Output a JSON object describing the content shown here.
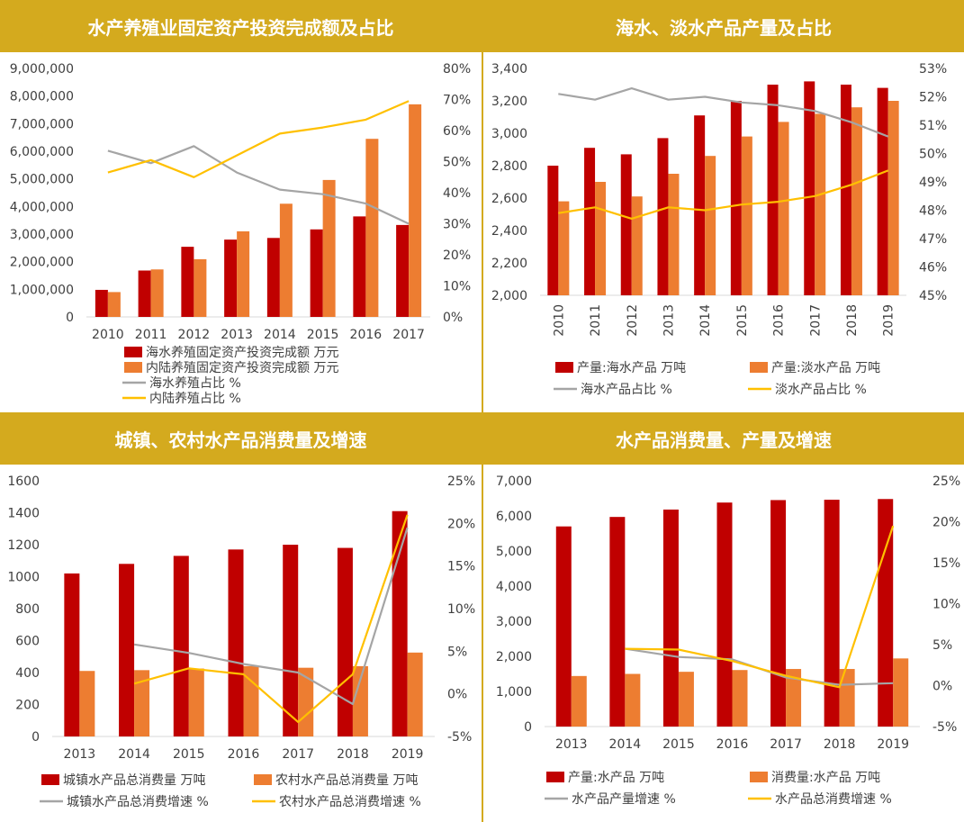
{
  "colors": {
    "header_bg": "#d4aa1e",
    "dark_red": "#c00000",
    "orange": "#ed7d31",
    "gray": "#a5a5a5",
    "yellow": "#ffc000"
  },
  "chart_data": [
    {
      "type": "bar",
      "title": "水产养殖业固定资产投资完成额及占比",
      "categories": [
        "2010",
        "2011",
        "2012",
        "2013",
        "2014",
        "2015",
        "2016",
        "2017"
      ],
      "ylim": [
        0,
        9000000
      ],
      "y_ticks": [
        "9,000,000",
        "8,000,000",
        "7,000,000",
        "6,000,000",
        "5,000,000",
        "4,000,000",
        "3,000,000",
        "2,000,000",
        "1,000,000",
        "0"
      ],
      "y2lim": [
        0,
        80
      ],
      "y2_ticks": [
        "80%",
        "70%",
        "60%",
        "50%",
        "40%",
        "30%",
        "20%",
        "10%",
        "0%"
      ],
      "series": [
        {
          "name": "海水养殖固定资产投资完成额 万元",
          "kind": "bar",
          "values": [
            980000,
            1680000,
            2540000,
            2800000,
            2860000,
            3170000,
            3640000,
            3330000
          ]
        },
        {
          "name": "内陆养殖固定资产投资完成额 万元",
          "kind": "bar",
          "values": [
            900000,
            1720000,
            2090000,
            3100000,
            4100000,
            4960000,
            6450000,
            7700000
          ]
        },
        {
          "name": "海水养殖占比 %",
          "kind": "line",
          "axis": "right",
          "values": [
            53.5,
            49.5,
            55,
            46.5,
            41,
            39.5,
            36.5,
            30
          ]
        },
        {
          "name": "内陆养殖占比 %",
          "kind": "line",
          "axis": "right",
          "values": [
            46.5,
            50.5,
            45,
            52,
            59,
            61,
            63.5,
            69.5
          ]
        }
      ]
    },
    {
      "type": "bar",
      "title": "海水、淡水产品产量及占比",
      "categories": [
        "2010",
        "2011",
        "2012",
        "2013",
        "2014",
        "2015",
        "2016",
        "2017",
        "2018",
        "2019"
      ],
      "ylim": [
        2000,
        3400
      ],
      "y_ticks": [
        "3,400",
        "3,200",
        "3,000",
        "2,800",
        "2,600",
        "2,400",
        "2,200",
        "2,000"
      ],
      "y2lim": [
        45,
        53
      ],
      "y2_ticks": [
        "53%",
        "52%",
        "51%",
        "50%",
        "49%",
        "48%",
        "47%",
        "46%",
        "45%"
      ],
      "series": [
        {
          "name": "产量:海水产品 万吨",
          "kind": "bar",
          "values": [
            2800,
            2910,
            2870,
            2970,
            3110,
            3200,
            3300,
            3320,
            3300,
            3280
          ]
        },
        {
          "name": "产量:淡水产品 万吨",
          "kind": "bar",
          "values": [
            2580,
            2700,
            2610,
            2750,
            2860,
            2980,
            3070,
            3120,
            3160,
            3200
          ]
        },
        {
          "name": "海水产品占比 %",
          "kind": "line",
          "axis": "right",
          "values": [
            52.1,
            51.9,
            52.3,
            51.9,
            52.0,
            51.8,
            51.7,
            51.5,
            51.1,
            50.6
          ]
        },
        {
          "name": "淡水产品占比 %",
          "kind": "line",
          "axis": "right",
          "values": [
            47.9,
            48.1,
            47.7,
            48.1,
            48.0,
            48.2,
            48.3,
            48.5,
            48.9,
            49.4
          ]
        }
      ]
    },
    {
      "type": "bar",
      "title": "城镇、农村水产品消费量及增速",
      "categories": [
        "2013",
        "2014",
        "2015",
        "2016",
        "2017",
        "2018",
        "2019"
      ],
      "ylim": [
        0,
        1600
      ],
      "y_ticks": [
        "1600",
        "1400",
        "1200",
        "1000",
        "800",
        "600",
        "400",
        "200",
        "0"
      ],
      "y2lim": [
        -5,
        25
      ],
      "y2_ticks": [
        "25%",
        "20%",
        "15%",
        "10%",
        "5%",
        "0%",
        "-5%"
      ],
      "series": [
        {
          "name": "城镇水产品总消费量 万吨",
          "kind": "bar",
          "values": [
            1020,
            1080,
            1130,
            1170,
            1200,
            1180,
            1410
          ]
        },
        {
          "name": "农村水产品总消费量 万吨",
          "kind": "bar",
          "values": [
            410,
            415,
            425,
            440,
            430,
            440,
            525
          ]
        },
        {
          "name": "城镇水产品总消费增速 %",
          "kind": "line",
          "axis": "right",
          "values": [
            null,
            5.8,
            4.8,
            3.5,
            2.5,
            -1.2,
            19.5
          ]
        },
        {
          "name": "农村水产品总消费增速 %",
          "kind": "line",
          "axis": "right",
          "values": [
            null,
            1.2,
            3,
            2.3,
            -3.3,
            2.3,
            21
          ]
        }
      ]
    },
    {
      "type": "bar",
      "title": "水产品消费量、产量及增速",
      "categories": [
        "2013",
        "2014",
        "2015",
        "2016",
        "2017",
        "2018",
        "2019"
      ],
      "ylim": [
        0,
        7000
      ],
      "y_ticks": [
        "7,000",
        "6,000",
        "5,000",
        "4,000",
        "3,000",
        "2,000",
        "1,000",
        "0"
      ],
      "y2lim": [
        -5,
        25
      ],
      "y2_ticks": [
        "25%",
        "20%",
        "15%",
        "10%",
        "5%",
        "0%",
        "-5%"
      ],
      "series": [
        {
          "name": "产量:水产品 万吨",
          "kind": "bar",
          "values": [
            5700,
            5970,
            6180,
            6380,
            6450,
            6460,
            6480
          ]
        },
        {
          "name": "消费量:水产品 万吨",
          "kind": "bar",
          "values": [
            1440,
            1500,
            1560,
            1610,
            1640,
            1640,
            1940
          ]
        },
        {
          "name": "水产品产量增速 %",
          "kind": "line",
          "axis": "right",
          "values": [
            null,
            4.5,
            3.5,
            3.2,
            1.0,
            0.1,
            0.3
          ]
        },
        {
          "name": "水产品总消费增速 %",
          "kind": "line",
          "axis": "right",
          "values": [
            null,
            4.5,
            4.4,
            3.0,
            1.2,
            -0.2,
            19.5
          ]
        }
      ]
    }
  ]
}
